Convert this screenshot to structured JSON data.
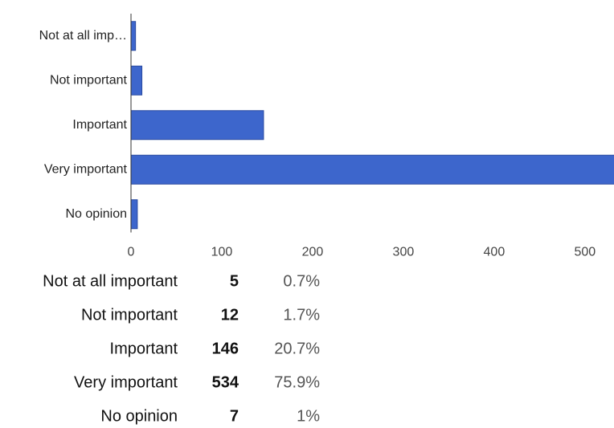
{
  "chart_data": {
    "type": "bar",
    "orientation": "horizontal",
    "categories": [
      "Not at all imp…",
      "Not important",
      "Important",
      "Very important",
      "No opinion"
    ],
    "values": [
      5,
      12,
      146,
      534,
      7
    ],
    "color": "#3d66cc",
    "xlim": [
      0,
      532
    ],
    "xticks": [
      0,
      100,
      200,
      300,
      400,
      500
    ],
    "grid": false
  },
  "table": {
    "rows": [
      [
        "Not at all important",
        "5",
        "0.7%"
      ],
      [
        "Not important",
        "12",
        "1.7%"
      ],
      [
        "Important",
        "146",
        "20.7%"
      ],
      [
        "Very important",
        "534",
        "75.9%"
      ],
      [
        "No opinion",
        "7",
        "1%"
      ]
    ]
  }
}
